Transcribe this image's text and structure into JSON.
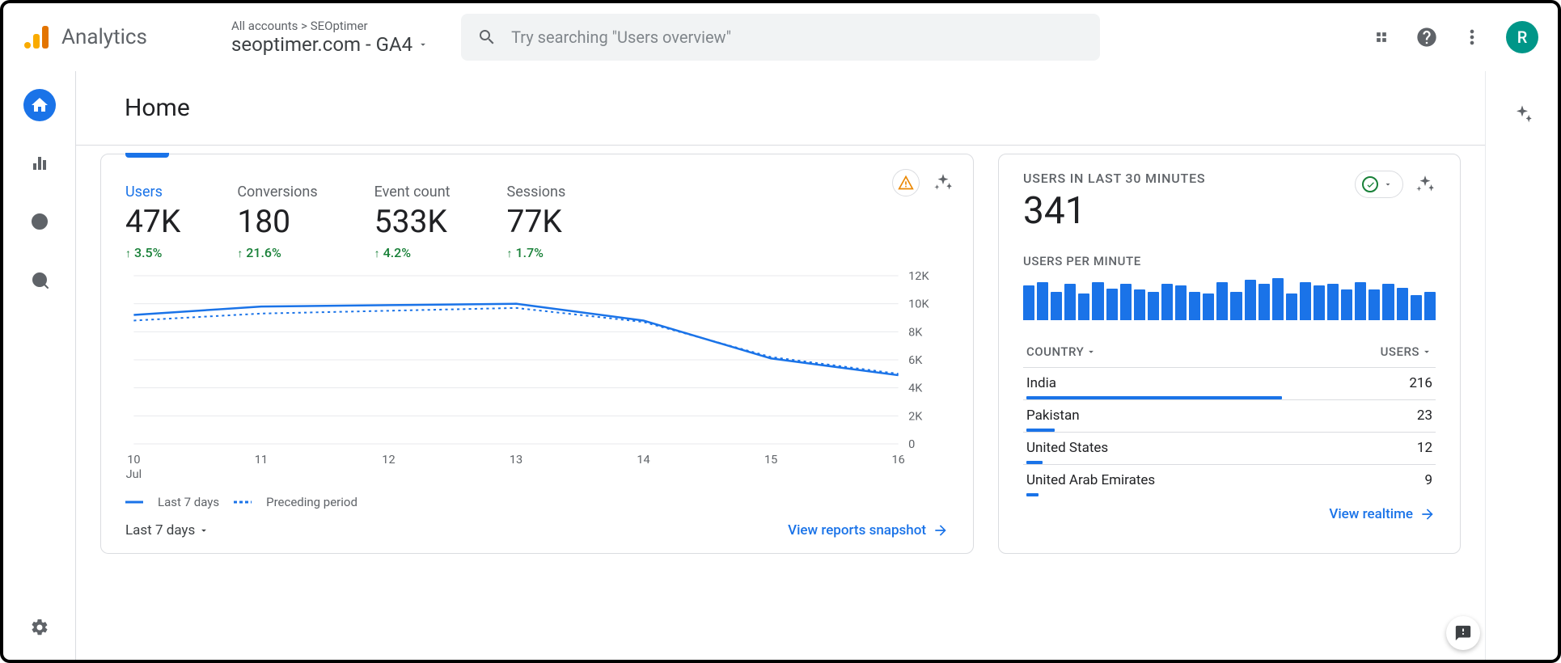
{
  "header": {
    "product_name": "Analytics",
    "breadcrumb": "All accounts > SEOptimer",
    "property_name": "seoptimer.com - GA4",
    "search_placeholder": "Try searching \"Users overview\"",
    "avatar_initial": "R",
    "avatar_bg": "#009688"
  },
  "page": {
    "title": "Home"
  },
  "metrics": [
    {
      "label": "Users",
      "value": "47K",
      "delta": "3.5%",
      "active": true
    },
    {
      "label": "Conversions",
      "value": "180",
      "delta": "21.6%",
      "active": false
    },
    {
      "label": "Event count",
      "value": "533K",
      "delta": "4.2%",
      "active": false
    },
    {
      "label": "Sessions",
      "value": "77K",
      "delta": "1.7%",
      "active": false
    }
  ],
  "main_chart": {
    "type": "line",
    "x_labels": [
      "10",
      "11",
      "12",
      "13",
      "14",
      "15",
      "16"
    ],
    "x_sublabel": "Jul",
    "y_ticks": [
      "0",
      "2K",
      "4K",
      "6K",
      "8K",
      "10K",
      "12K"
    ],
    "y_values": [
      0,
      2000,
      4000,
      6000,
      8000,
      10000,
      12000
    ],
    "ylim": [
      0,
      12000
    ],
    "series_current": [
      9200,
      9800,
      9900,
      10000,
      8800,
      6100,
      4900
    ],
    "series_prev": [
      8800,
      9300,
      9500,
      9700,
      8700,
      6200,
      5000
    ],
    "line_color": "#1a73e8",
    "grid_color": "#e8eaed",
    "legend": {
      "current": "Last 7 days",
      "prev": "Preceding period"
    },
    "footer_selector": "Last 7 days",
    "footer_link": "View reports snapshot"
  },
  "realtime": {
    "title": "USERS IN LAST 30 MINUTES",
    "value": "341",
    "subtitle": "USERS PER MINUTE",
    "bars": [
      36,
      40,
      30,
      38,
      28,
      40,
      33,
      38,
      32,
      30,
      38,
      36,
      30,
      28,
      40,
      30,
      42,
      38,
      44,
      28,
      40,
      36,
      38,
      32,
      40,
      32,
      38,
      34,
      26,
      30
    ],
    "bar_color": "#1a73e8",
    "table_head": {
      "dim": "COUNTRY",
      "met": "USERS"
    },
    "rows": [
      {
        "label": "India",
        "value": "216",
        "pct": 63
      },
      {
        "label": "Pakistan",
        "value": "23",
        "pct": 7
      },
      {
        "label": "United States",
        "value": "12",
        "pct": 4
      },
      {
        "label": "United Arab Emirates",
        "value": "9",
        "pct": 3
      }
    ],
    "footer_link": "View realtime"
  }
}
